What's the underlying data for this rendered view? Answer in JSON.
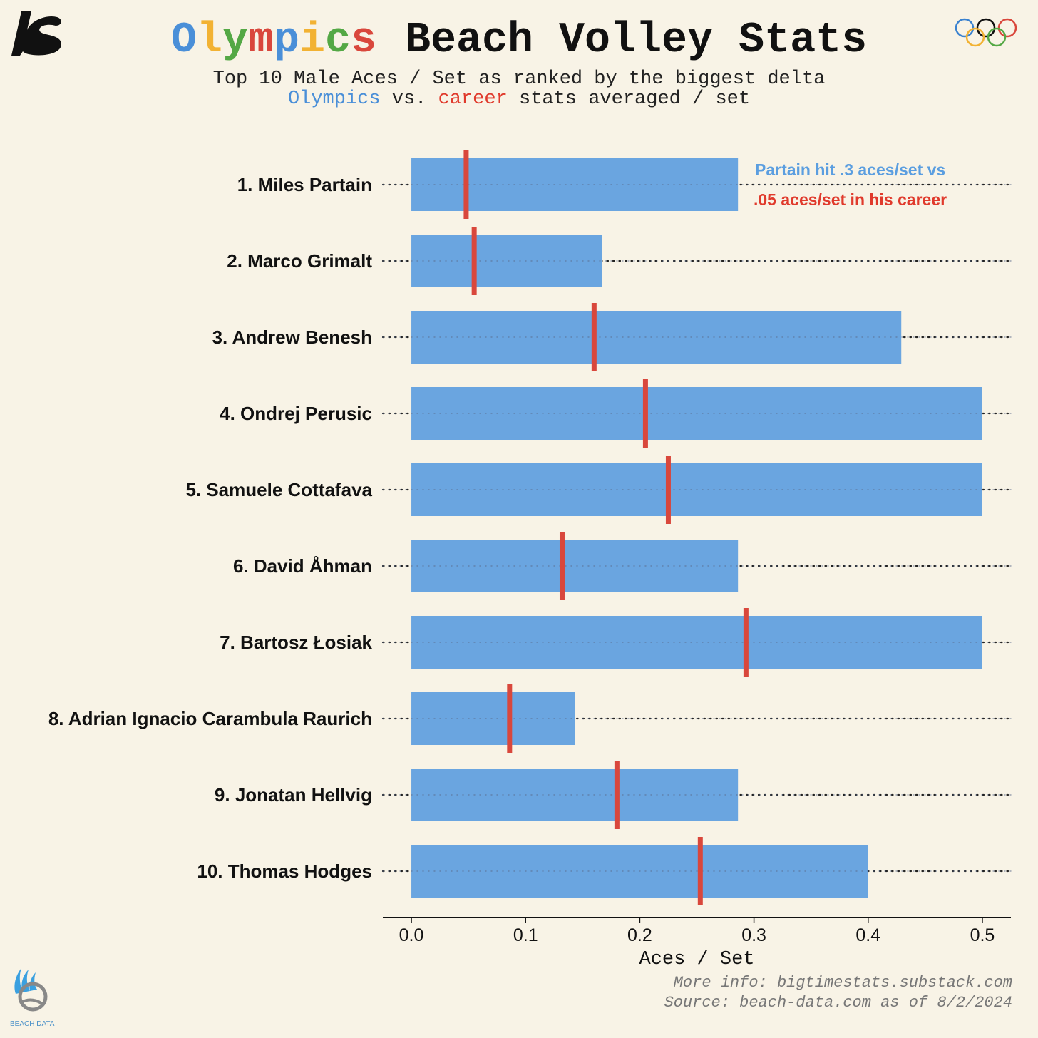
{
  "header": {
    "title_word1_letters": [
      {
        "ch": "O",
        "color": "#4a8fd8"
      },
      {
        "ch": "l",
        "color": "#f2b233"
      },
      {
        "ch": "y",
        "color": "#54a845"
      },
      {
        "ch": "m",
        "color": "#d9473c"
      },
      {
        "ch": "p",
        "color": "#4a8fd8"
      },
      {
        "ch": "i",
        "color": "#f2b233"
      },
      {
        "ch": "c",
        "color": "#54a845"
      },
      {
        "ch": "s",
        "color": "#d9473c"
      }
    ],
    "title_rest": "Beach Volley Stats",
    "subtitle_line1": "Top 10 Male Aces / Set as ranked by the biggest delta",
    "subtitle_line2": {
      "olympics": "Olympics",
      "vs": " vs. ",
      "career": "career",
      "rest": " stats averaged / set"
    }
  },
  "colors": {
    "bar": "#6aa5e0",
    "career_marker": "#d9473c",
    "olympics_text": "#4a8fd8",
    "career_text": "#e03a2c",
    "annotation_blue": "#5b9ee0"
  },
  "chart_data": {
    "type": "bar",
    "orientation": "horizontal",
    "categories": [
      "1. Miles Partain",
      "2. Marco Grimalt",
      "3. Andrew Benesh",
      "4. Ondrej Perusic",
      "5. Samuele Cottafava",
      "6. David Åhman",
      "7. Bartosz Łosiak",
      "8. Adrian Ignacio Carambula Raurich",
      "9. Jonatan Hellvig",
      "10. Thomas Hodges"
    ],
    "series": [
      {
        "name": "Olympics",
        "values": [
          0.286,
          0.167,
          0.429,
          0.5,
          0.5,
          0.286,
          0.5,
          0.143,
          0.286,
          0.4
        ]
      },
      {
        "name": "career",
        "values": [
          0.048,
          0.055,
          0.16,
          0.205,
          0.225,
          0.132,
          0.293,
          0.086,
          0.18,
          0.253
        ]
      }
    ],
    "xlabel": "Aces / Set",
    "ticks": [
      "0.0",
      "0.1",
      "0.2",
      "0.3",
      "0.4",
      "0.5"
    ],
    "xlim": [
      -0.025,
      0.525
    ],
    "annotation": {
      "line1": "Partain hit .3 aces/set vs",
      "line2": ".05 aces/set in his career"
    }
  },
  "footer": {
    "line1": "More info: bigtimestats.substack.com",
    "line2": "Source: beach-data.com as of 8/2/2024"
  },
  "beach_logo_text": "BEACH DATA"
}
